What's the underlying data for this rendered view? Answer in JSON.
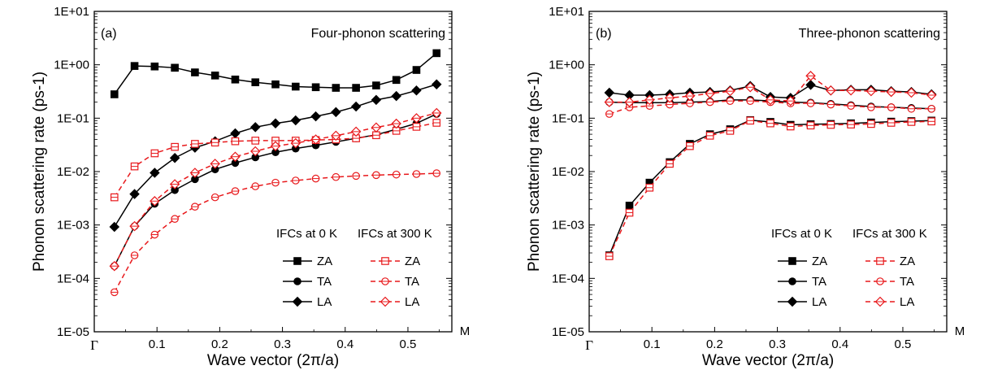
{
  "chart_data": [
    {
      "type": "line",
      "panel_label": "(a)",
      "annotation": "Four-phonon scattering",
      "xlabel": "Wave vector (2π/a)",
      "ylabel": "Phonon scattering rate (ps-1)",
      "y_scale": "log",
      "ylim": [
        1e-05,
        10
      ],
      "xlim": [
        0,
        0.57
      ],
      "x_ticks": [
        "Γ",
        "0.1",
        "0.2",
        "0.3",
        "0.4",
        "0.5",
        "M"
      ],
      "y_ticks": [
        "1E-05",
        "1E-04",
        "1E-03",
        "1E-02",
        "1E-01",
        "1E+00",
        "1E+01"
      ],
      "legend_headers": [
        "IFCs at 0 K",
        "IFCs at 300 K"
      ],
      "legend_placement": "bottom-right",
      "x": [
        0.0321,
        0.0642,
        0.0963,
        0.1284,
        0.1605,
        0.1926,
        0.2247,
        0.2568,
        0.2889,
        0.321,
        0.3531,
        0.3852,
        0.4173,
        0.4494,
        0.4815,
        0.5136,
        0.5457
      ],
      "series": [
        {
          "name": "ZA",
          "group": "IFCs at 0 K",
          "marker": "square",
          "style": "solid",
          "color": "#000000",
          "values": [
            0.28,
            0.95,
            0.93,
            0.88,
            0.72,
            0.63,
            0.53,
            0.47,
            0.43,
            0.39,
            0.38,
            0.37,
            0.37,
            0.41,
            0.52,
            0.8,
            1.65
          ]
        },
        {
          "name": "TA",
          "group": "IFCs at 0 K",
          "marker": "circle",
          "style": "solid",
          "color": "#000000",
          "values": [
            0.00017,
            0.00095,
            0.0025,
            0.0045,
            0.0072,
            0.011,
            0.0145,
            0.0185,
            0.023,
            0.027,
            0.031,
            0.036,
            0.042,
            0.049,
            0.062,
            0.08,
            0.12
          ]
        },
        {
          "name": "LA",
          "group": "IFCs at 0 K",
          "marker": "diamond",
          "style": "solid",
          "color": "#000000",
          "values": [
            0.00092,
            0.0038,
            0.0095,
            0.018,
            0.028,
            0.037,
            0.052,
            0.068,
            0.08,
            0.091,
            0.108,
            0.13,
            0.165,
            0.22,
            0.26,
            0.33,
            0.43
          ]
        },
        {
          "name": "ZA",
          "group": "IFCs at 300 K",
          "marker": "open-square",
          "style": "dashed",
          "color": "#e8191c",
          "values": [
            0.0033,
            0.0125,
            0.022,
            0.029,
            0.033,
            0.035,
            0.037,
            0.038,
            0.038,
            0.038,
            0.039,
            0.04,
            0.042,
            0.048,
            0.058,
            0.069,
            0.082
          ]
        },
        {
          "name": "TA",
          "group": "IFCs at 300 K",
          "marker": "open-circle",
          "style": "dashed",
          "color": "#e8191c",
          "values": [
            5.5e-05,
            0.00027,
            0.00066,
            0.0013,
            0.0022,
            0.0033,
            0.0043,
            0.0053,
            0.0062,
            0.0068,
            0.0074,
            0.0079,
            0.0083,
            0.0086,
            0.0088,
            0.009,
            0.0093
          ]
        },
        {
          "name": "LA",
          "group": "IFCs at 300 K",
          "marker": "open-diamond",
          "style": "dashed",
          "color": "#e8191c",
          "values": [
            0.00017,
            0.00095,
            0.0028,
            0.0058,
            0.0095,
            0.014,
            0.019,
            0.024,
            0.03,
            0.034,
            0.04,
            0.047,
            0.056,
            0.067,
            0.079,
            0.1,
            0.125
          ]
        }
      ]
    },
    {
      "type": "line",
      "panel_label": "(b)",
      "annotation": "Three-phonon scattering",
      "xlabel": "Wave vector (2π/a)",
      "ylabel": "Phonon scattering rate (ps-1)",
      "y_scale": "log",
      "ylim": [
        1e-05,
        10
      ],
      "xlim": [
        0,
        0.57
      ],
      "x_ticks": [
        "Γ",
        "0.1",
        "0.2",
        "0.3",
        "0.4",
        "0.5",
        "M"
      ],
      "y_ticks": [
        "1E-05",
        "1E-04",
        "1E-03",
        "1E-02",
        "1E-01",
        "1E+00",
        "1E+01"
      ],
      "legend_headers": [
        "IFCs at 0 K",
        "IFCs at 300 K"
      ],
      "legend_placement": "bottom-right",
      "x": [
        0.0321,
        0.0642,
        0.0963,
        0.1284,
        0.1605,
        0.1926,
        0.2247,
        0.2568,
        0.2889,
        0.321,
        0.3531,
        0.3852,
        0.4173,
        0.4494,
        0.4815,
        0.5136,
        0.5457
      ],
      "series": [
        {
          "name": "ZA",
          "group": "IFCs at 0 K",
          "marker": "square",
          "style": "solid",
          "color": "#000000",
          "values": [
            0.00027,
            0.0023,
            0.0062,
            0.015,
            0.033,
            0.05,
            0.062,
            0.092,
            0.085,
            0.075,
            0.077,
            0.078,
            0.08,
            0.083,
            0.086,
            0.088,
            0.09
          ]
        },
        {
          "name": "TA",
          "group": "IFCs at 0 K",
          "marker": "circle",
          "style": "solid",
          "color": "#000000",
          "values": [
            0.2,
            0.195,
            0.195,
            0.195,
            0.2,
            0.205,
            0.22,
            0.22,
            0.21,
            0.2,
            0.195,
            0.185,
            0.175,
            0.165,
            0.16,
            0.155,
            0.15
          ]
        },
        {
          "name": "LA",
          "group": "IFCs at 0 K",
          "marker": "diamond",
          "style": "solid",
          "color": "#000000",
          "values": [
            0.3,
            0.27,
            0.27,
            0.28,
            0.3,
            0.31,
            0.33,
            0.4,
            0.25,
            0.24,
            0.42,
            0.33,
            0.34,
            0.34,
            0.32,
            0.31,
            0.28
          ]
        },
        {
          "name": "ZA",
          "group": "IFCs at 300 K",
          "marker": "open-square",
          "style": "dashed",
          "color": "#e8191c",
          "values": [
            0.00026,
            0.0017,
            0.005,
            0.014,
            0.03,
            0.047,
            0.058,
            0.09,
            0.08,
            0.07,
            0.073,
            0.075,
            0.076,
            0.078,
            0.082,
            0.085,
            0.087
          ]
        },
        {
          "name": "TA",
          "group": "IFCs at 300 K",
          "marker": "open-circle",
          "style": "dashed",
          "color": "#e8191c",
          "values": [
            0.12,
            0.16,
            0.17,
            0.18,
            0.19,
            0.2,
            0.21,
            0.21,
            0.2,
            0.19,
            0.19,
            0.18,
            0.17,
            0.16,
            0.16,
            0.15,
            0.15
          ]
        },
        {
          "name": "LA",
          "group": "IFCs at 300 K",
          "marker": "open-diamond",
          "style": "dashed",
          "color": "#e8191c",
          "values": [
            0.2,
            0.2,
            0.22,
            0.24,
            0.26,
            0.29,
            0.32,
            0.38,
            0.22,
            0.21,
            0.62,
            0.33,
            0.33,
            0.32,
            0.31,
            0.3,
            0.27
          ]
        }
      ]
    }
  ]
}
